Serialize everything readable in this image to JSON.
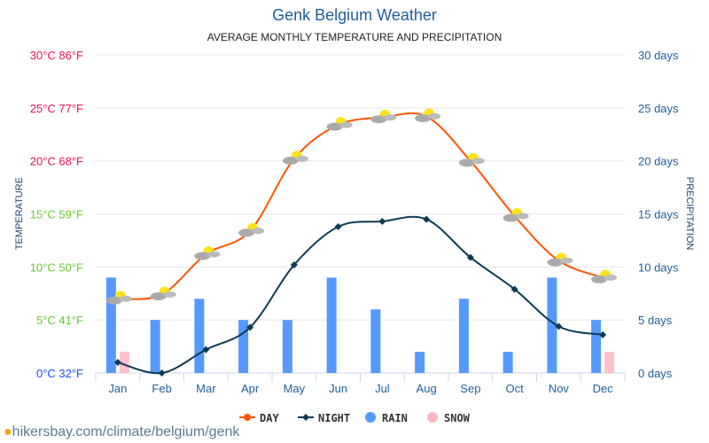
{
  "chart_data": {
    "type": "bar+line",
    "title": "Genk Belgium Weather",
    "subtitle": "AVERAGE MONTHLY TEMPERATURE AND PRECIPITATION",
    "ylabel": "TEMPERATURE",
    "y2label": "PRECIPITATION",
    "ylim": [
      0,
      30
    ],
    "y2lim": [
      0,
      30
    ],
    "yticks": [
      "0°C 32°F",
      "5°C 41°F",
      "10°C 50°F",
      "15°C 59°F",
      "20°C 68°F",
      "25°C 77°F",
      "30°C 86°F"
    ],
    "y2ticks": [
      "0 days",
      "5 days",
      "10 days",
      "15 days",
      "20 days",
      "25 days",
      "30 days"
    ],
    "categories": [
      "Jan",
      "Feb",
      "Mar",
      "Apr",
      "May",
      "Jun",
      "Jul",
      "Aug",
      "Sep",
      "Oct",
      "Nov",
      "Dec"
    ],
    "series": [
      {
        "name": "DAY",
        "type": "line",
        "color": "#ff5500",
        "values": [
          7.0,
          7.4,
          11.2,
          13.4,
          20.2,
          23.4,
          24.1,
          24.2,
          20.0,
          14.8,
          10.6,
          9.0
        ]
      },
      {
        "name": "NIGHT",
        "type": "line",
        "color": "#0d3b52",
        "values": [
          1.0,
          0.0,
          2.2,
          4.3,
          10.2,
          13.8,
          14.3,
          14.5,
          10.9,
          7.9,
          4.4,
          3.6
        ]
      },
      {
        "name": "RAIN",
        "type": "bar",
        "color": "#5599ff",
        "values": [
          9,
          5,
          7,
          5,
          5,
          9,
          6,
          2,
          7,
          2,
          9,
          5
        ]
      },
      {
        "name": "SNOW",
        "type": "bar",
        "color": "#ffc0cb",
        "values": [
          2,
          0,
          0,
          0,
          0,
          0,
          0,
          0,
          0,
          0,
          0,
          2
        ]
      }
    ],
    "legend": "bottom"
  },
  "footer": "hikersbay.com/climate/belgium/genk"
}
